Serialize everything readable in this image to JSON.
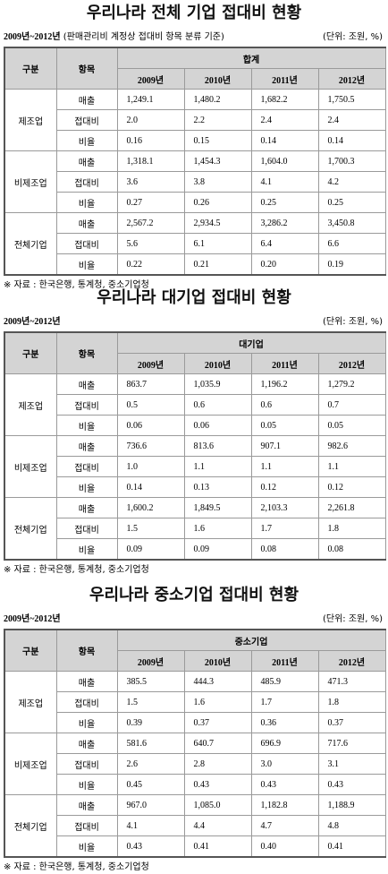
{
  "sections": [
    {
      "title": "우리나라 전체 기업 접대비 현황",
      "period": "2009년~2012년",
      "basis": "(판매관리비 계정상 접대비 항목 분류 기준)",
      "unit": "(단위: 조원, %)",
      "header": {
        "category": "구분",
        "item": "항목",
        "group": "합계",
        "years": [
          "2009년",
          "2010년",
          "2011년",
          "2012년"
        ]
      },
      "rows": [
        {
          "category": "제조업",
          "items": [
            {
              "label": "매출",
              "values": [
                "1,249.1",
                "1,480.2",
                "1,682.2",
                "1,750.5"
              ]
            },
            {
              "label": "접대비",
              "values": [
                "2.0",
                "2.2",
                "2.4",
                "2.4"
              ]
            },
            {
              "label": "비율",
              "values": [
                "0.16",
                "0.15",
                "0.14",
                "0.14"
              ]
            }
          ]
        },
        {
          "category": "비제조업",
          "items": [
            {
              "label": "매출",
              "values": [
                "1,318.1",
                "1,454.3",
                "1,604.0",
                "1,700.3"
              ]
            },
            {
              "label": "접대비",
              "values": [
                "3.6",
                "3.8",
                "4.1",
                "4.2"
              ]
            },
            {
              "label": "비율",
              "values": [
                "0.27",
                "0.26",
                "0.25",
                "0.25"
              ]
            }
          ]
        },
        {
          "category": "전체기업",
          "items": [
            {
              "label": "매출",
              "values": [
                "2,567.2",
                "2,934.5",
                "3,286.2",
                "3,450.8"
              ]
            },
            {
              "label": "접대비",
              "values": [
                "5.6",
                "6.1",
                "6.4",
                "6.6"
              ]
            },
            {
              "label": "비율",
              "values": [
                "0.22",
                "0.21",
                "0.20",
                "0.19"
              ]
            }
          ]
        }
      ],
      "source": "※ 자료 : 한국은행, 통계청, 중소기업청"
    },
    {
      "title": "우리나라 대기업 접대비 현황",
      "period": "2009년~2012년",
      "unit": "(단위: 조원, %)",
      "header": {
        "category": "구분",
        "item": "항목",
        "group": "대기업",
        "years": [
          "2009년",
          "2010년",
          "2011년",
          "2012년"
        ]
      },
      "rows": [
        {
          "category": "제조업",
          "items": [
            {
              "label": "매출",
              "values": [
                "863.7",
                "1,035.9",
                "1,196.2",
                "1,279.2"
              ]
            },
            {
              "label": "접대비",
              "values": [
                "0.5",
                "0.6",
                "0.6",
                "0.7"
              ]
            },
            {
              "label": "비율",
              "values": [
                "0.06",
                "0.06",
                "0.05",
                "0.05"
              ]
            }
          ]
        },
        {
          "category": "비제조업",
          "items": [
            {
              "label": "매출",
              "values": [
                "736.6",
                "813.6",
                "907.1",
                "982.6"
              ]
            },
            {
              "label": "접대비",
              "values": [
                "1.0",
                "1.1",
                "1.1",
                "1.1"
              ]
            },
            {
              "label": "비율",
              "values": [
                "0.14",
                "0.13",
                "0.12",
                "0.12"
              ]
            }
          ]
        },
        {
          "category": "전체기업",
          "items": [
            {
              "label": "매출",
              "values": [
                "1,600.2",
                "1,849.5",
                "2,103.3",
                "2,261.8"
              ]
            },
            {
              "label": "접대비",
              "values": [
                "1.5",
                "1.6",
                "1.7",
                "1.8"
              ]
            },
            {
              "label": "비율",
              "values": [
                "0.09",
                "0.09",
                "0.08",
                "0.08"
              ]
            }
          ]
        }
      ],
      "source": "※ 자료 : 한국은행, 통계청, 중소기업청"
    },
    {
      "title": "우리나라 중소기업 접대비 현황",
      "period": "2009년~2012년",
      "unit": "(단위: 조원, %)",
      "header": {
        "category": "구분",
        "item": "항목",
        "group": "중소기업",
        "years": [
          "2009년",
          "2010년",
          "2011년",
          "2012년"
        ]
      },
      "rows": [
        {
          "category": "제조업",
          "items": [
            {
              "label": "매출",
              "values": [
                "385.5",
                "444.3",
                "485.9",
                "471.3"
              ]
            },
            {
              "label": "접대비",
              "values": [
                "1.5",
                "1.6",
                "1.7",
                "1.8"
              ]
            },
            {
              "label": "비율",
              "values": [
                "0.39",
                "0.37",
                "0.36",
                "0.37"
              ]
            }
          ]
        },
        {
          "category": "비제조업",
          "items": [
            {
              "label": "매출",
              "values": [
                "581.6",
                "640.7",
                "696.9",
                "717.6"
              ]
            },
            {
              "label": "접대비",
              "values": [
                "2.6",
                "2.8",
                "3.0",
                "3.1"
              ]
            },
            {
              "label": "비율",
              "values": [
                "0.45",
                "0.43",
                "0.43",
                "0.43"
              ]
            }
          ]
        },
        {
          "category": "전체기업",
          "items": [
            {
              "label": "매출",
              "values": [
                "967.0",
                "1,085.0",
                "1,182.8",
                "1,188.9"
              ]
            },
            {
              "label": "접대비",
              "values": [
                "4.1",
                "4.4",
                "4.7",
                "4.8"
              ]
            },
            {
              "label": "비율",
              "values": [
                "0.43",
                "0.41",
                "0.40",
                "0.41"
              ]
            }
          ]
        }
      ],
      "source": "※ 자료 : 한국은행, 통계청, 중소기업청"
    }
  ]
}
